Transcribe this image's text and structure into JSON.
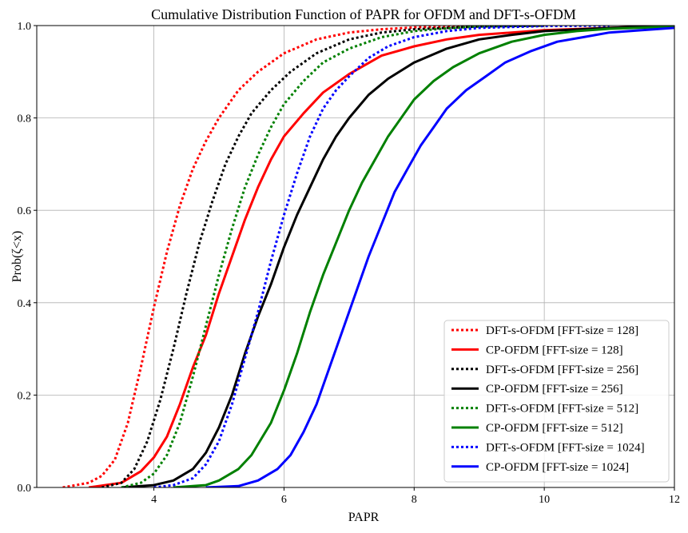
{
  "chart_data": {
    "type": "line",
    "title": "Cumulative Distribution Function of PAPR for OFDM and DFT-s-OFDM",
    "xlabel": "PAPR",
    "ylabel": "Prob(ζ<x)",
    "xlim": [
      2.2,
      12
    ],
    "ylim": [
      0,
      1
    ],
    "xticks": [
      "4",
      "6",
      "8",
      "10",
      "12"
    ],
    "yticks": [
      "0.0",
      "0.2",
      "0.4",
      "0.6",
      "0.8",
      "1.0"
    ],
    "grid": true,
    "legend_position": "lower-right",
    "series": [
      {
        "name": "DFT-s-OFDM [FFT-size = 128]",
        "color": "#ff0000",
        "style": "dotted",
        "x": [
          2.6,
          3.0,
          3.2,
          3.4,
          3.6,
          3.8,
          4.0,
          4.2,
          4.4,
          4.6,
          4.8,
          5.0,
          5.3,
          5.6,
          6.0,
          6.5,
          7.0,
          7.5,
          8.0,
          9.0,
          10.0
        ],
        "y": [
          0,
          0.01,
          0.025,
          0.06,
          0.14,
          0.26,
          0.39,
          0.51,
          0.61,
          0.69,
          0.75,
          0.8,
          0.86,
          0.9,
          0.94,
          0.97,
          0.985,
          0.992,
          0.996,
          0.999,
          1.0
        ]
      },
      {
        "name": "CP-OFDM [FFT-size = 128]",
        "color": "#ff0000",
        "style": "solid",
        "x": [
          3.0,
          3.5,
          3.8,
          4.0,
          4.2,
          4.4,
          4.6,
          4.8,
          5.0,
          5.2,
          5.4,
          5.6,
          5.8,
          6.0,
          6.3,
          6.6,
          7.0,
          7.5,
          8.0,
          8.5,
          9.0,
          10.0,
          11.0,
          12.0
        ],
        "y": [
          0,
          0.01,
          0.035,
          0.065,
          0.11,
          0.18,
          0.26,
          0.33,
          0.42,
          0.5,
          0.58,
          0.65,
          0.71,
          0.76,
          0.81,
          0.855,
          0.895,
          0.935,
          0.955,
          0.97,
          0.98,
          0.99,
          0.995,
          1.0
        ]
      },
      {
        "name": "DFT-s-OFDM [FFT-size = 256]",
        "color": "#000000",
        "style": "dotted",
        "x": [
          3.2,
          3.5,
          3.7,
          3.9,
          4.1,
          4.3,
          4.5,
          4.7,
          4.9,
          5.1,
          5.3,
          5.5,
          5.8,
          6.1,
          6.5,
          7.0,
          7.5,
          8.0,
          9.0,
          10.0
        ],
        "y": [
          0,
          0.01,
          0.04,
          0.1,
          0.19,
          0.3,
          0.42,
          0.53,
          0.62,
          0.7,
          0.76,
          0.81,
          0.86,
          0.9,
          0.94,
          0.97,
          0.985,
          0.992,
          0.998,
          1.0
        ]
      },
      {
        "name": "CP-OFDM [FFT-size = 256]",
        "color": "#000000",
        "style": "solid",
        "x": [
          3.5,
          4.0,
          4.3,
          4.6,
          4.8,
          5.0,
          5.2,
          5.4,
          5.6,
          5.8,
          6.0,
          6.2,
          6.4,
          6.6,
          6.8,
          7.0,
          7.3,
          7.6,
          8.0,
          8.5,
          9.0,
          9.5,
          10.0,
          11.0,
          12.0
        ],
        "y": [
          0,
          0.005,
          0.015,
          0.04,
          0.075,
          0.13,
          0.2,
          0.29,
          0.37,
          0.44,
          0.52,
          0.59,
          0.65,
          0.71,
          0.76,
          0.8,
          0.85,
          0.885,
          0.92,
          0.95,
          0.97,
          0.98,
          0.988,
          0.995,
          1.0
        ]
      },
      {
        "name": "DFT-s-OFDM [FFT-size = 512]",
        "color": "#008000",
        "style": "dotted",
        "x": [
          3.5,
          3.8,
          4.0,
          4.2,
          4.4,
          4.6,
          4.8,
          5.0,
          5.2,
          5.4,
          5.6,
          5.8,
          6.0,
          6.3,
          6.6,
          7.0,
          7.5,
          8.0,
          8.5,
          9.0,
          10.0
        ],
        "y": [
          0,
          0.01,
          0.03,
          0.07,
          0.14,
          0.24,
          0.35,
          0.46,
          0.56,
          0.65,
          0.72,
          0.78,
          0.83,
          0.88,
          0.92,
          0.95,
          0.975,
          0.988,
          0.994,
          0.998,
          1.0
        ]
      },
      {
        "name": "CP-OFDM [FFT-size = 512]",
        "color": "#008000",
        "style": "solid",
        "x": [
          4.3,
          4.8,
          5.0,
          5.3,
          5.5,
          5.8,
          6.0,
          6.2,
          6.4,
          6.6,
          6.8,
          7.0,
          7.2,
          7.4,
          7.6,
          7.8,
          8.0,
          8.3,
          8.6,
          9.0,
          9.5,
          10.0,
          10.5,
          11.0,
          12.0
        ],
        "y": [
          0,
          0.005,
          0.015,
          0.04,
          0.07,
          0.14,
          0.21,
          0.29,
          0.38,
          0.46,
          0.53,
          0.6,
          0.66,
          0.71,
          0.76,
          0.8,
          0.84,
          0.88,
          0.91,
          0.94,
          0.965,
          0.98,
          0.988,
          0.993,
          0.998
        ]
      },
      {
        "name": "DFT-s-OFDM [FFT-size = 1024]",
        "color": "#0000ff",
        "style": "dotted",
        "x": [
          4.0,
          4.3,
          4.6,
          4.8,
          5.0,
          5.2,
          5.4,
          5.6,
          5.8,
          6.0,
          6.2,
          6.4,
          6.6,
          6.8,
          7.0,
          7.3,
          7.6,
          8.0,
          8.5,
          9.0,
          10.0,
          11.0
        ],
        "y": [
          0,
          0.005,
          0.02,
          0.05,
          0.1,
          0.18,
          0.28,
          0.38,
          0.49,
          0.59,
          0.68,
          0.76,
          0.82,
          0.86,
          0.89,
          0.93,
          0.955,
          0.975,
          0.988,
          0.995,
          0.999,
          1.0
        ]
      },
      {
        "name": "CP-OFDM [FFT-size = 1024]",
        "color": "#0000ff",
        "style": "solid",
        "x": [
          4.8,
          5.3,
          5.6,
          5.9,
          6.1,
          6.3,
          6.5,
          6.7,
          6.9,
          7.1,
          7.3,
          7.5,
          7.7,
          7.9,
          8.1,
          8.3,
          8.5,
          8.8,
          9.1,
          9.4,
          9.8,
          10.2,
          10.6,
          11.0,
          11.5,
          12.0
        ],
        "y": [
          0,
          0.003,
          0.015,
          0.04,
          0.07,
          0.12,
          0.18,
          0.26,
          0.34,
          0.42,
          0.5,
          0.57,
          0.64,
          0.69,
          0.74,
          0.78,
          0.82,
          0.86,
          0.89,
          0.92,
          0.945,
          0.965,
          0.975,
          0.985,
          0.99,
          0.995
        ]
      }
    ]
  }
}
